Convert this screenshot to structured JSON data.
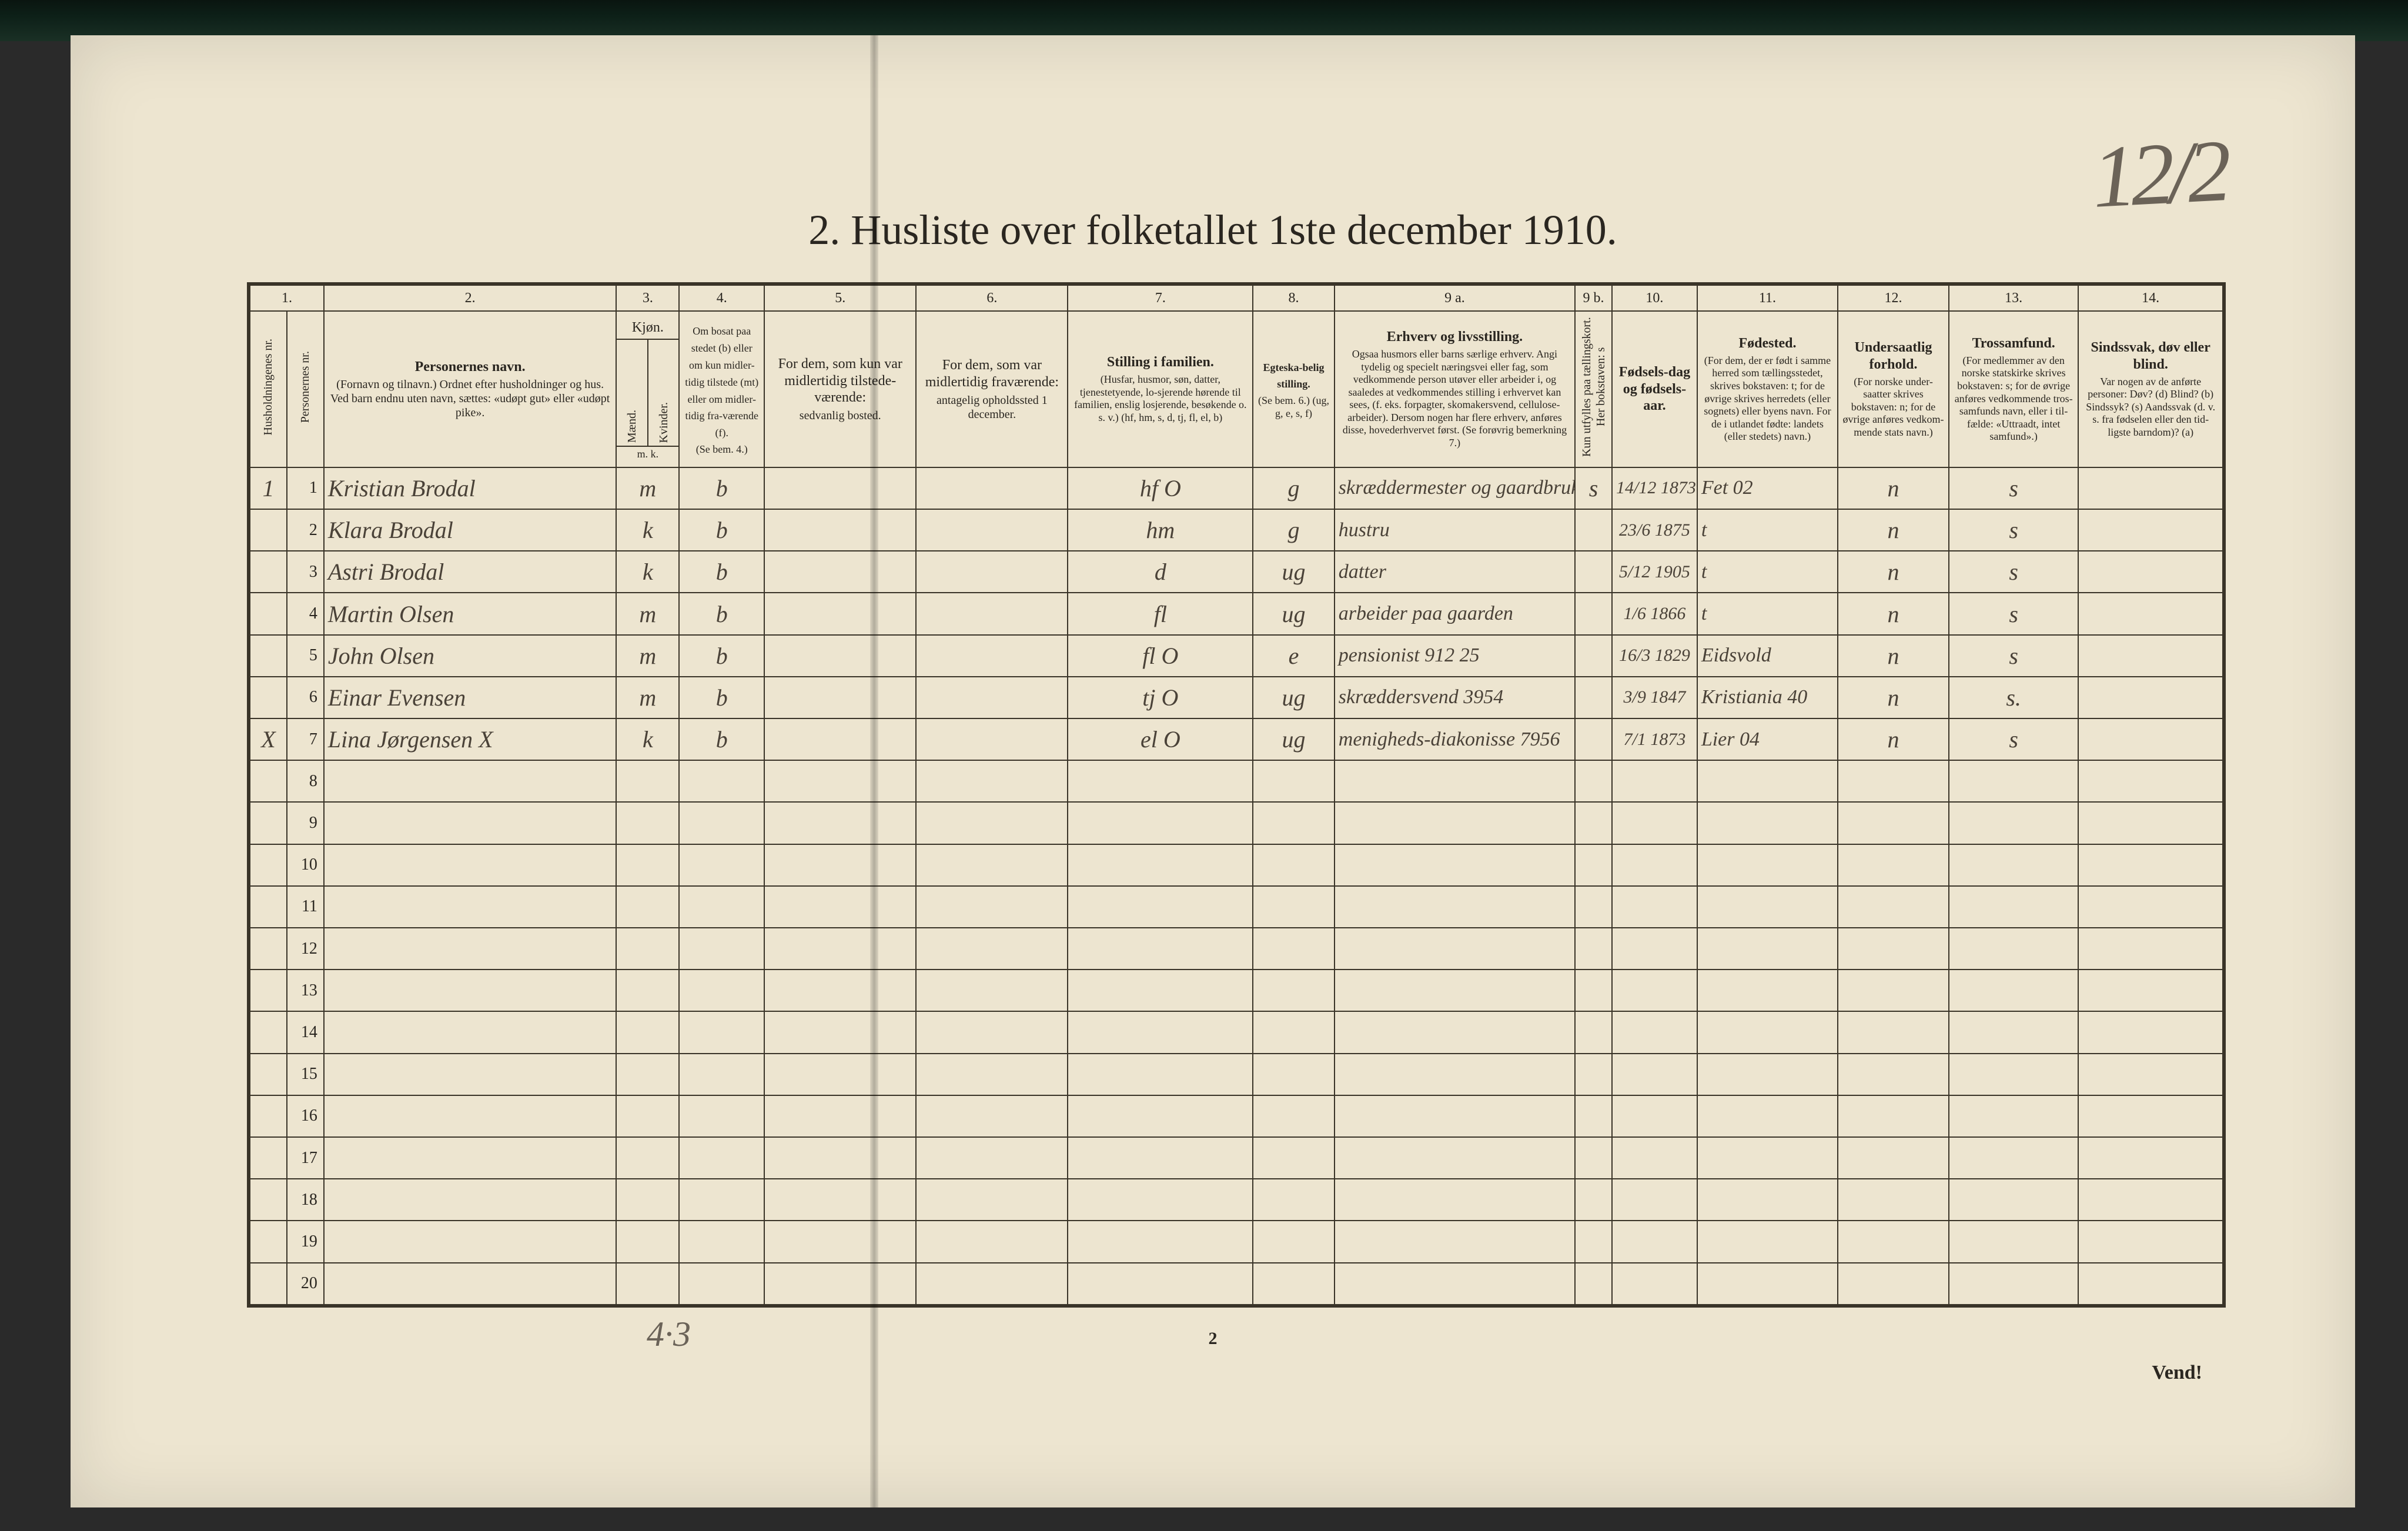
{
  "page_number_handwritten": "12/2",
  "title": "2.  Husliste over folketallet 1ste december 1910.",
  "footer_page_number": "2",
  "footer_right": "Vend!",
  "bottom_handwritten_note": "4·3",
  "colors": {
    "paper": "#ede5d0",
    "ink": "#2a2620",
    "rule": "#3a3428",
    "pencil": "#6b6358",
    "handwriting": "#4a4238",
    "background": "#2a2a2a"
  },
  "column_numbers": [
    "1.",
    "2.",
    "3.",
    "4.",
    "5.",
    "6.",
    "7.",
    "8.",
    "9 a.",
    "9 b.",
    "10.",
    "11.",
    "12.",
    "13.",
    "14."
  ],
  "column_widths_pct": [
    2.0,
    2.0,
    15.8,
    3.4,
    4.6,
    8.2,
    8.2,
    10.0,
    4.4,
    13.0,
    2.0,
    4.6,
    7.6,
    6.0,
    7.0,
    7.8
  ],
  "headers": {
    "c1a": "Husholdningenes nr.",
    "c1b": "Personernes nr.",
    "c2": "Personernes navn.",
    "c2_sub": "(Fornavn og tilnavn.)\nOrdnet efter husholdninger og hus.\nVed barn endnu uten navn, sættes: «udøpt gut» eller «udøpt pike».",
    "c3": "Kjøn.",
    "c3_sub_m": "Mænd.",
    "c3_sub_k": "Kvinder.",
    "c3_foot": "m.   k.",
    "c4": "Om bosat paa stedet (b) eller om kun midler-tidig tilstede (mt) eller om midler-tidig fra-værende (f).",
    "c4_foot": "(Se bem. 4.)",
    "c5": "For dem, som kun var midlertidig tilstede-værende:",
    "c5_sub": "sedvanlig bosted.",
    "c6": "For dem, som var midlertidig fraværende:",
    "c6_sub": "antagelig opholdssted 1 december.",
    "c7": "Stilling i familien.",
    "c7_sub": "(Husfar, husmor, søn, datter, tjenestetyende, lo-sjerende hørende til familien, enslig losjerende, besøkende o. s. v.)\n(hf, hm, s, d, tj, fl, el, b)",
    "c8": "Egteska-belig stilling.",
    "c8_sub": "(Se bem. 6.)\n(ug, g, e, s, f)",
    "c9a": "Erhverv og livsstilling.",
    "c9a_sub": "Ogsaa husmors eller barns særlige erhverv. Angi tydelig og specielt næringsvei eller fag, som vedkommende person utøver eller arbeider i, og saaledes at vedkommendes stilling i erhvervet kan sees, (f. eks. forpagter, skomakersvend, cellulose-arbeider). Dersom nogen har flere erhverv, anføres disse, hovederhvervet først.\n(Se forøvrig bemerkning 7.)",
    "c9b": "Kun utfylles paa tællingskort. Her bokstaven: s",
    "c10": "Fødsels-dag og fødsels-aar.",
    "c11": "Fødested.",
    "c11_sub": "(For dem, der er født i samme herred som tællingsstedet, skrives bokstaven: t; for de øvrige skrives herredets (eller sognets) eller byens navn. For de i utlandet fødte: landets (eller stedets) navn.)",
    "c12": "Undersaatlig forhold.",
    "c12_sub": "(For norske under-saatter skrives bokstaven: n; for de øvrige anføres vedkom-mende stats navn.)",
    "c13": "Trossamfund.",
    "c13_sub": "(For medlemmer av den norske statskirke skrives bokstaven: s; for de øvrige anføres vedkommende tros-samfunds navn, eller i til-fælde: «Uttraadt, intet samfund».)",
    "c14": "Sindssvak, døv eller blind.",
    "c14_sub": "Var nogen av de anførte personer:\nDøv?        (d)\nBlind?       (b)\nSindssyk?  (s)\nAandssvak (d. v. s. fra fødselen eller den tid-ligste barndom)? (a)"
  },
  "rows": [
    {
      "hh": "1",
      "pn": "1",
      "name": "Kristian Brodal",
      "sex": "m",
      "res": "b",
      "c5": "",
      "c6": "",
      "fam": "hf  O",
      "mar": "g",
      "occ": "skræddermester og gaardbruker",
      "s": "s",
      "dob": "14/12 1873",
      "birthplace": "Fet  02",
      "nat": "n",
      "rel": "s",
      "c14": ""
    },
    {
      "hh": "",
      "pn": "2",
      "name": "Klara Brodal",
      "sex": "k",
      "res": "b",
      "c5": "",
      "c6": "",
      "fam": "hm",
      "mar": "g",
      "occ": "hustru",
      "s": "",
      "dob": "23/6 1875",
      "birthplace": "t",
      "nat": "n",
      "rel": "s",
      "c14": ""
    },
    {
      "hh": "",
      "pn": "3",
      "name": "Astri Brodal",
      "sex": "k",
      "res": "b",
      "c5": "",
      "c6": "",
      "fam": "d",
      "mar": "ug",
      "occ": "datter",
      "s": "",
      "dob": "5/12 1905",
      "birthplace": "t",
      "nat": "n",
      "rel": "s",
      "c14": ""
    },
    {
      "hh": "",
      "pn": "4",
      "name": "Martin Olsen",
      "sex": "m",
      "res": "b",
      "c5": "",
      "c6": "",
      "fam": "fl",
      "mar": "ug",
      "occ": "arbeider paa gaarden",
      "s": "",
      "dob": "1/6 1866",
      "birthplace": "t",
      "nat": "n",
      "rel": "s",
      "c14": ""
    },
    {
      "hh": "",
      "pn": "5",
      "name": "John Olsen",
      "sex": "m",
      "res": "b",
      "c5": "",
      "c6": "",
      "fam": "fl  O",
      "mar": "e",
      "occ": "pensionist  912 25",
      "s": "",
      "dob": "16/3 1829",
      "birthplace": "Eidsvold",
      "nat": "n",
      "rel": "s",
      "c14": ""
    },
    {
      "hh": "",
      "pn": "6",
      "name": "Einar Evensen",
      "sex": "m",
      "res": "b",
      "c5": "",
      "c6": "",
      "fam": "tj  O",
      "mar": "ug",
      "occ": "skræddersvend 3954",
      "s": "",
      "dob": "3/9 1847",
      "birthplace": "Kristiania 40",
      "nat": "n",
      "rel": "s.",
      "c14": ""
    },
    {
      "hh": "X",
      "pn": "7",
      "name": "Lina Jørgensen  X",
      "sex": "k",
      "res": "b",
      "c5": "",
      "c6": "",
      "fam": "el  O",
      "mar": "ug",
      "occ": "menigheds-diakonisse 7956",
      "s": "",
      "dob": "7/1 1873",
      "birthplace": "Lier  04",
      "nat": "n",
      "rel": "s",
      "c14": ""
    }
  ],
  "empty_row_numbers": [
    "8",
    "9",
    "10",
    "11",
    "12",
    "13",
    "14",
    "15",
    "16",
    "17",
    "18",
    "19",
    "20"
  ],
  "typography": {
    "title_fontsize_pt": 54,
    "header_fontsize_pt": 18,
    "rownum_fontsize_pt": 21,
    "handwriting_fontsize_pt": 30
  }
}
